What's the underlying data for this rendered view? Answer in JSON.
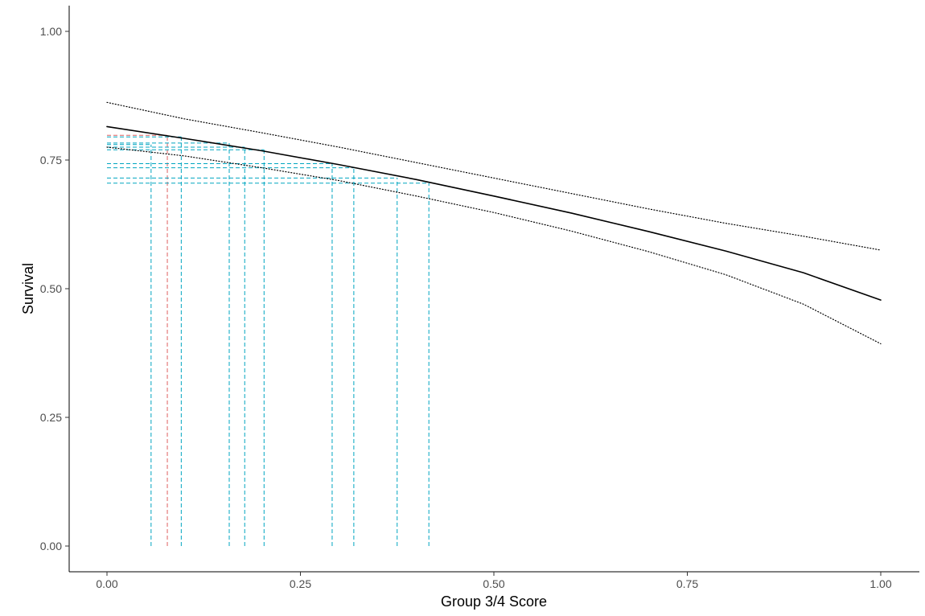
{
  "chart_data": {
    "type": "line",
    "xlabel": "Group 3/4 Score",
    "ylabel": "Survival",
    "xlim": [
      0,
      1
    ],
    "ylim": [
      0,
      1
    ],
    "x_ticks": [
      0,
      0.25,
      0.5,
      0.75,
      1
    ],
    "x_tick_labels": [
      "0.00",
      "0.25",
      "0.50",
      "0.75",
      "1.00"
    ],
    "y_ticks": [
      0,
      0.25,
      0.5,
      0.75,
      1
    ],
    "y_tick_labels": [
      "0.00",
      "0.25",
      "0.50",
      "0.75",
      "1.00"
    ],
    "grid": false,
    "series": [
      {
        "style": "solid",
        "color": "#000000",
        "x": [
          0,
          0.1,
          0.2,
          0.3,
          0.4,
          0.5,
          0.6,
          0.7,
          0.8,
          0.9,
          1.0
        ],
        "y": [
          0.815,
          0.792,
          0.768,
          0.741,
          0.712,
          0.68,
          0.647,
          0.611,
          0.573,
          0.531,
          0.478
        ]
      },
      {
        "style": "dotted",
        "color": "#000000",
        "x": [
          0,
          0.1,
          0.2,
          0.3,
          0.4,
          0.5,
          0.6,
          0.7,
          0.8,
          0.9,
          1.0
        ],
        "y": [
          0.862,
          0.83,
          0.803,
          0.775,
          0.745,
          0.715,
          0.685,
          0.655,
          0.627,
          0.602,
          0.575
        ]
      },
      {
        "style": "dotted",
        "color": "#000000",
        "x": [
          0,
          0.1,
          0.2,
          0.3,
          0.4,
          0.5,
          0.6,
          0.7,
          0.8,
          0.9,
          1.0
        ],
        "y": [
          0.775,
          0.758,
          0.735,
          0.71,
          0.68,
          0.648,
          0.612,
          0.572,
          0.527,
          0.47,
          0.393
        ]
      }
    ],
    "reference_lines": [
      {
        "x": 0.057,
        "y": 0.78,
        "color": "#00a5c0"
      },
      {
        "x": 0.078,
        "y": 0.798,
        "color": "#e06060"
      },
      {
        "x": 0.096,
        "y": 0.795,
        "color": "#00a5c0"
      },
      {
        "x": 0.158,
        "y": 0.783,
        "color": "#00a5c0"
      },
      {
        "x": 0.178,
        "y": 0.775,
        "color": "#00a5c0"
      },
      {
        "x": 0.203,
        "y": 0.77,
        "color": "#00a5c0"
      },
      {
        "x": 0.291,
        "y": 0.743,
        "color": "#00a5c0"
      },
      {
        "x": 0.319,
        "y": 0.735,
        "color": "#00a5c0"
      },
      {
        "x": 0.375,
        "y": 0.715,
        "color": "#00a5c0"
      },
      {
        "x": 0.416,
        "y": 0.705,
        "color": "#00a5c0"
      }
    ]
  }
}
